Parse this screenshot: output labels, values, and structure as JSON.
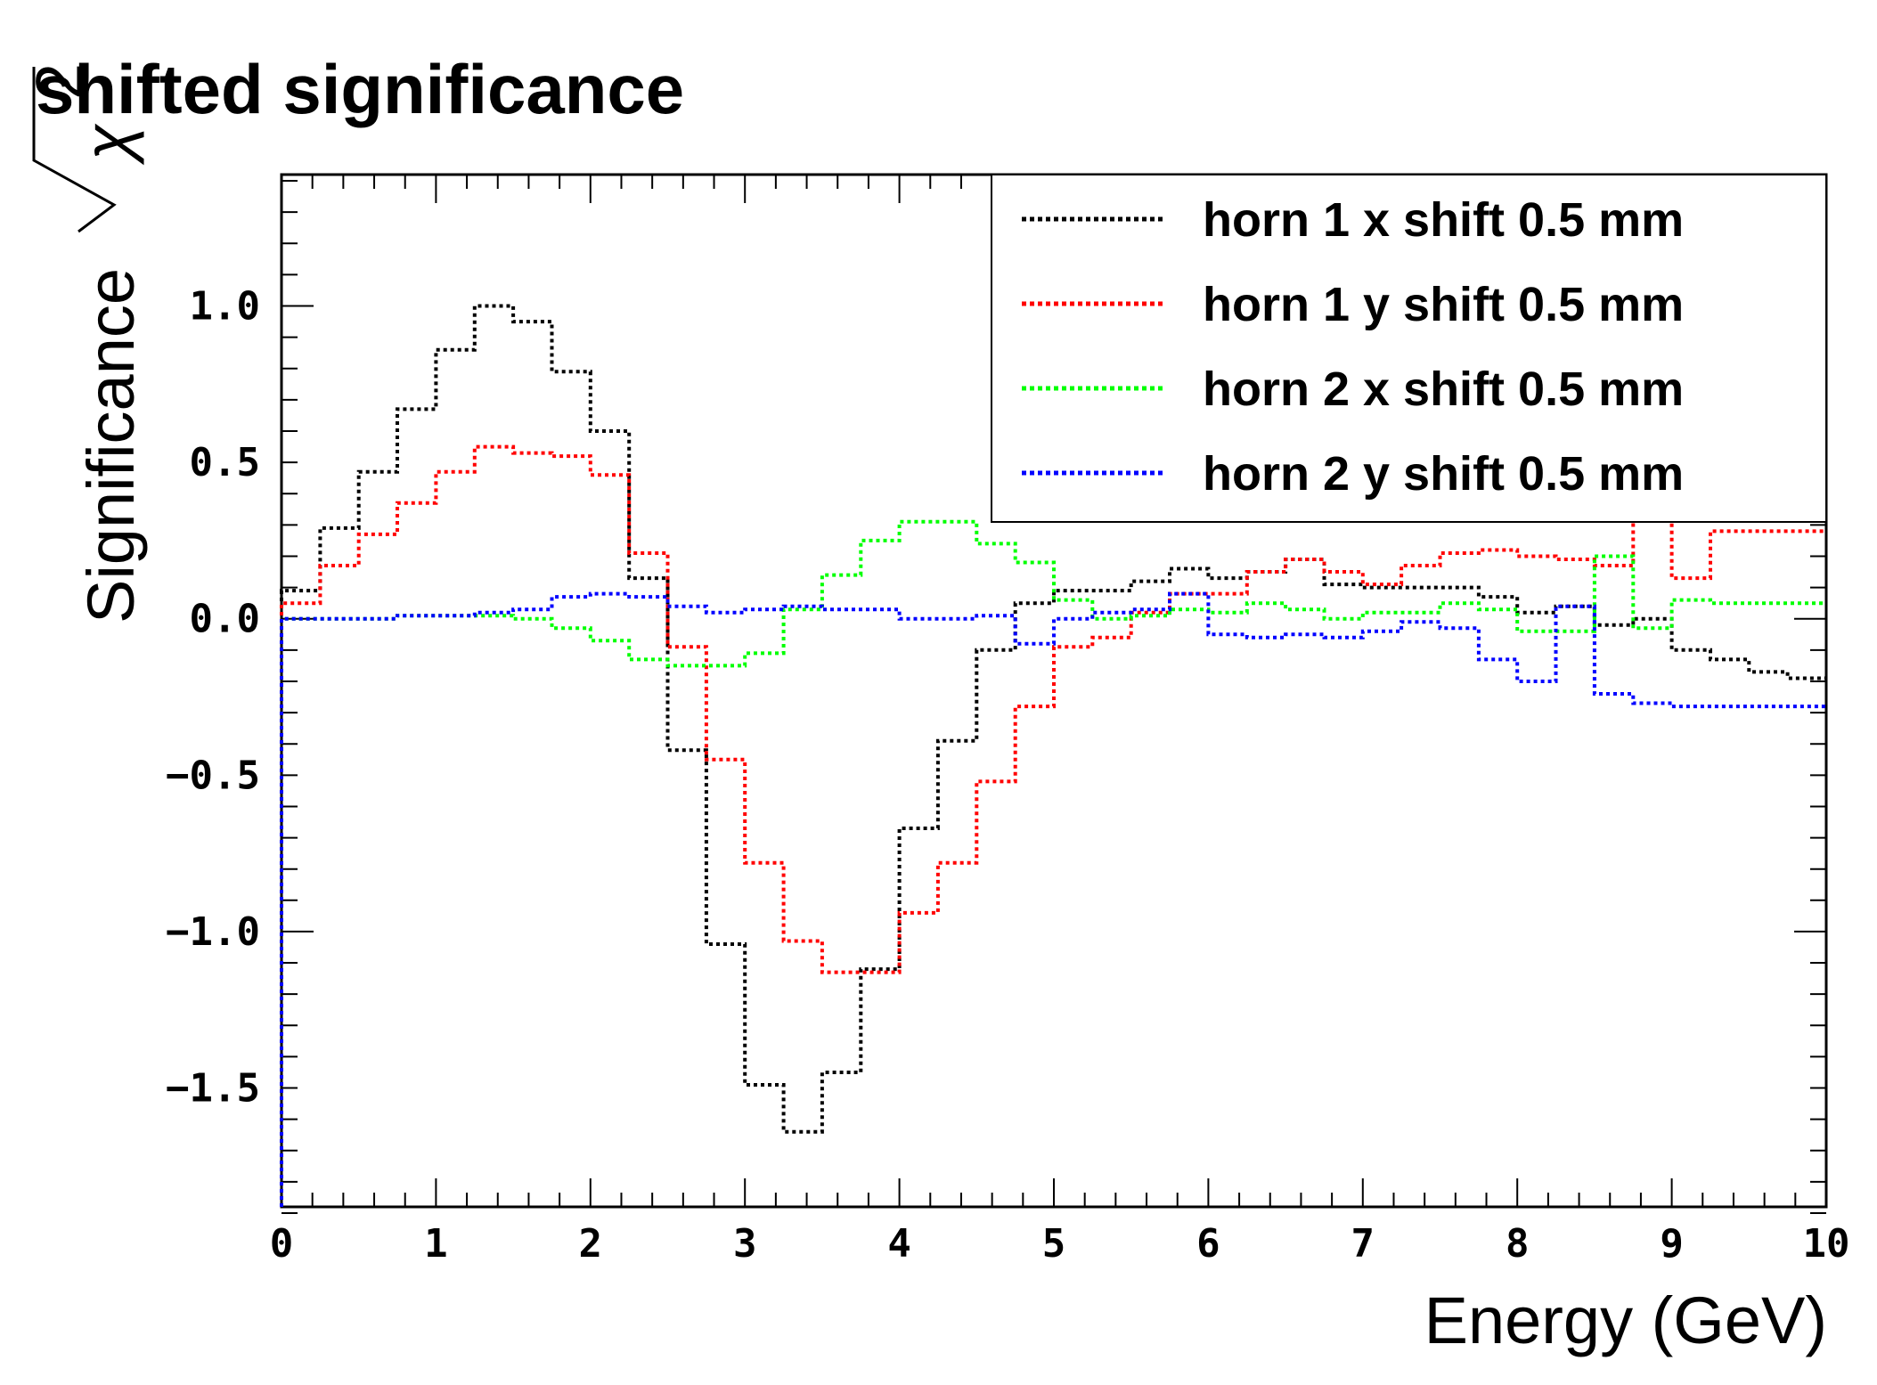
{
  "chart_data": {
    "type": "line",
    "style": "step",
    "title": "shifted significance",
    "xlabel": "Energy (GeV)",
    "ylabel": "Significance √χ²",
    "ylabel_text": "Significance",
    "ylabel_chi": "χ",
    "ylabel_sup": "2",
    "xlim": [
      0,
      10
    ],
    "ylim": [
      -1.88,
      1.42
    ],
    "xticks": [
      0,
      1,
      2,
      3,
      4,
      5,
      6,
      7,
      8,
      9,
      10
    ],
    "xtick_labels": [
      "0",
      "1",
      "2",
      "3",
      "4",
      "5",
      "6",
      "7",
      "8",
      "9",
      "10"
    ],
    "yticks": [
      -1.5,
      -1.0,
      -0.5,
      0.0,
      0.5,
      1.0
    ],
    "ytick_labels": [
      "−1.5",
      "−1.0",
      "−0.5",
      "0.0",
      "0.5",
      "1.0"
    ],
    "legend_position": "top-right",
    "bin_edges": [
      0,
      0.25,
      0.5,
      0.75,
      1,
      1.25,
      1.5,
      1.75,
      2,
      2.25,
      2.5,
      2.75,
      3,
      3.25,
      3.5,
      3.75,
      4,
      4.25,
      4.5,
      4.75,
      5,
      5.25,
      5.5,
      5.75,
      6,
      6.25,
      6.5,
      6.75,
      7,
      7.25,
      7.5,
      7.75,
      8,
      8.25,
      8.5,
      8.75,
      9,
      9.25,
      9.5,
      9.75,
      10
    ],
    "series": [
      {
        "name": "horn 1 x shift 0.5 mm",
        "color": "#000000",
        "values": [
          0.09,
          0.29,
          0.47,
          0.67,
          0.86,
          1.0,
          0.95,
          0.79,
          0.6,
          0.13,
          -0.42,
          -1.04,
          -1.49,
          -1.64,
          -1.45,
          -1.12,
          -0.67,
          -0.39,
          -0.1,
          0.05,
          0.09,
          0.09,
          0.12,
          0.16,
          0.13,
          0.15,
          0.19,
          0.11,
          0.1,
          0.1,
          0.1,
          0.07,
          0.02,
          0.04,
          -0.02,
          0.0,
          -0.1,
          -0.13,
          -0.17,
          -0.19
        ]
      },
      {
        "name": "horn 1 y shift 0.5 mm",
        "color": "#ff0000",
        "values": [
          0.05,
          0.17,
          0.27,
          0.37,
          0.47,
          0.55,
          0.53,
          0.52,
          0.46,
          0.21,
          -0.09,
          -0.45,
          -0.78,
          -1.03,
          -1.13,
          -1.13,
          -0.94,
          -0.78,
          -0.52,
          -0.28,
          -0.09,
          -0.06,
          0.02,
          0.08,
          0.08,
          0.15,
          0.19,
          0.15,
          0.11,
          0.17,
          0.21,
          0.22,
          0.2,
          0.19,
          0.17,
          0.34,
          0.13,
          0.28,
          0.28,
          0.28
        ]
      },
      {
        "name": "horn 2 x shift 0.5 mm",
        "color": "#00ff00",
        "values": [
          0.0,
          0.0,
          0.0,
          0.01,
          0.01,
          0.01,
          0.0,
          -0.03,
          -0.07,
          -0.13,
          -0.15,
          -0.15,
          -0.11,
          0.03,
          0.14,
          0.25,
          0.31,
          0.31,
          0.24,
          0.18,
          0.06,
          0.0,
          0.01,
          0.03,
          0.02,
          0.05,
          0.03,
          0.0,
          0.02,
          0.02,
          0.05,
          0.03,
          -0.04,
          -0.04,
          0.2,
          -0.03,
          0.06,
          0.05,
          0.05,
          0.05
        ]
      },
      {
        "name": "horn 2 y shift 0.5 mm",
        "color": "#0000ff",
        "values": [
          0.0,
          0.0,
          0.0,
          0.01,
          0.01,
          0.02,
          0.03,
          0.07,
          0.08,
          0.07,
          0.04,
          0.02,
          0.03,
          0.04,
          0.03,
          0.03,
          0.0,
          0.0,
          0.01,
          -0.08,
          0.0,
          0.02,
          0.03,
          0.08,
          -0.05,
          -0.06,
          -0.05,
          -0.06,
          -0.04,
          -0.01,
          -0.03,
          -0.13,
          -0.2,
          0.04,
          -0.24,
          -0.27,
          -0.28,
          -0.28,
          -0.28,
          -0.28
        ]
      }
    ]
  }
}
